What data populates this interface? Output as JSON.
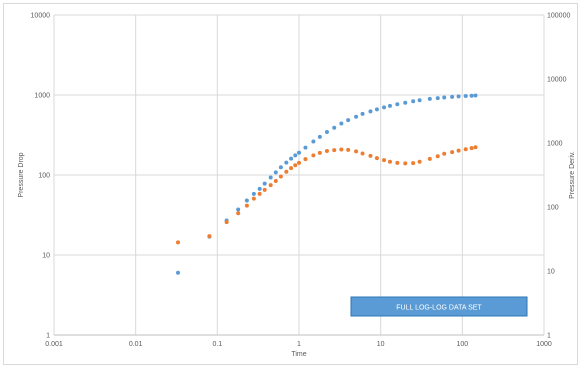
{
  "chart_data": {
    "type": "scatter",
    "title": "",
    "xlabel": "Time",
    "ylabel": "Pressure Drop",
    "y2label": "Pressure Deriv.",
    "x_scale": "log",
    "y_scale": "log",
    "y2_scale": "log",
    "xlim": [
      0.001,
      1000
    ],
    "ylim": [
      1,
      10000
    ],
    "y2lim": [
      1,
      100000
    ],
    "x_ticks": [
      "0.001",
      "0.01",
      "0.1",
      "1",
      "10",
      "100",
      "1000"
    ],
    "y_ticks": [
      "1",
      "10",
      "100",
      "1000",
      "10000"
    ],
    "y2_ticks": [
      "1",
      "10",
      "100",
      "1000",
      "10000",
      "100000"
    ],
    "grid": true,
    "annotation": "FULL LOG-LOG DATA SET",
    "colors": {
      "pressure_drop": "#5b9bd5",
      "pressure_derivative": "#ed7d31",
      "annotation_bg": "#5b9bd5"
    },
    "series": [
      {
        "axis": "left",
        "color": "#5b9bd5",
        "x": [
          0.033,
          0.08,
          0.13,
          0.18,
          0.23,
          0.28,
          0.33,
          0.38,
          0.45,
          0.52,
          0.6,
          0.7,
          0.8,
          0.9,
          1,
          1.2,
          1.5,
          1.8,
          2.2,
          2.7,
          3.3,
          4,
          5,
          6,
          7.5,
          9,
          11,
          13,
          16,
          20,
          25,
          30,
          40,
          50,
          60,
          75,
          90,
          110,
          130,
          145
        ],
        "y": [
          6,
          17,
          27,
          37,
          48,
          58,
          67,
          78,
          93,
          108,
          125,
          143,
          160,
          176,
          190,
          220,
          262,
          300,
          345,
          390,
          440,
          485,
          535,
          580,
          625,
          660,
          700,
          730,
          765,
          800,
          835,
          860,
          895,
          915,
          930,
          948,
          960,
          970,
          978,
          985
        ]
      },
      {
        "axis": "right",
        "color": "#ed7d31",
        "x": [
          0.033,
          0.08,
          0.13,
          0.18,
          0.23,
          0.28,
          0.33,
          0.38,
          0.45,
          0.52,
          0.6,
          0.7,
          0.8,
          0.9,
          1,
          1.2,
          1.5,
          1.8,
          2.2,
          2.7,
          3.3,
          4,
          5,
          6,
          7.5,
          9,
          11,
          13,
          16,
          20,
          25,
          30,
          40,
          50,
          60,
          75,
          90,
          110,
          130,
          145
        ],
        "y": [
          28,
          35,
          58,
          80,
          105,
          135,
          160,
          185,
          220,
          255,
          300,
          355,
          405,
          450,
          490,
          560,
          640,
          700,
          750,
          775,
          790,
          780,
          740,
          685,
          630,
          580,
          540,
          510,
          490,
          480,
          485,
          510,
          565,
          620,
          680,
          720,
          760,
          800,
          830,
          860
        ]
      }
    ]
  }
}
